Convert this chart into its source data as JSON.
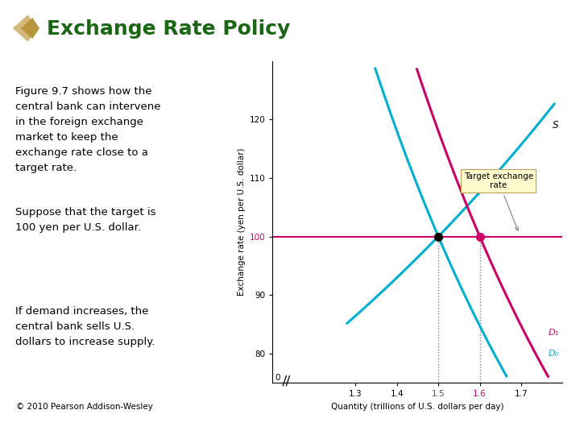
{
  "title": "Exchange Rate Policy",
  "title_color": "#1a6614",
  "title_fontsize": 18,
  "bg_color": "#ffffff",
  "text_block": [
    "Figure 9.7 shows how the\ncentral bank can intervene\nin the foreign exchange\nmarket to keep the\nexchange rate close to a\ntarget rate.",
    "Suppose that the target is\n100 yen per U.S. dollar.",
    "If demand increases, the\ncentral bank sells U.S.\ndollars to increase supply."
  ],
  "footnote": "© 2010 Pearson Addison-Wesley",
  "supply_color": "#00b0d0",
  "demand0_color": "#00b0d0",
  "demand1_color": "#cc0066",
  "target_line_color": "#cc0066",
  "target_y": 100,
  "eq0_x": 1.5,
  "eq1_x": 1.6,
  "xlabel": "Quantity (trillions of U.S. dollars per day)",
  "ylabel": "Exchange rate (yen per U.S. dollar)",
  "xlim": [
    1.1,
    1.8
  ],
  "ylim": [
    75,
    130
  ],
  "annotation_box_color": "#fffacd",
  "annotation_text": "Target exchange\nrate",
  "s_label": "S",
  "d0_label": "D₀",
  "d1_label": "D₁",
  "icon_color1": "#d4b87a",
  "icon_color2": "#b8943a"
}
